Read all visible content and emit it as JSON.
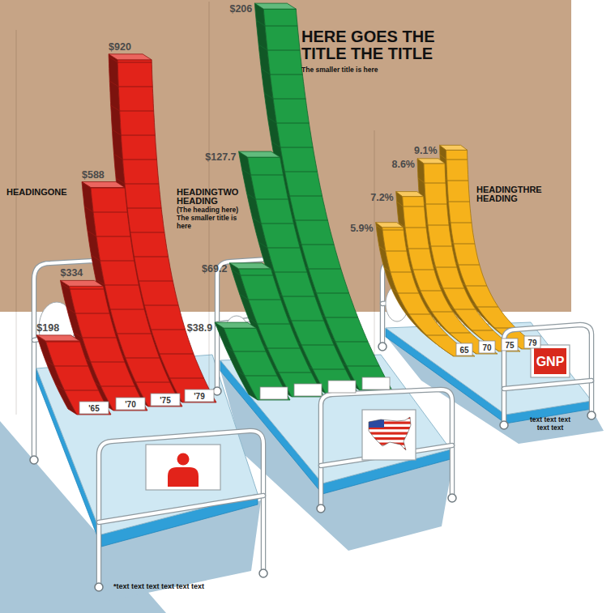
{
  "header": {
    "title": "HERE GOES THE TITLE THE TITLE",
    "subtitle": "The smaller title is here"
  },
  "chart_data": [
    {
      "type": "bar",
      "title": "HEADINGONE",
      "categories": [
        "'65",
        "'70",
        "'75",
        "'79"
      ],
      "values": [
        198,
        334,
        588,
        920
      ],
      "value_labels": [
        "$198",
        "$334",
        "$588",
        "$920"
      ],
      "data_labels": true,
      "color": "#e2231a",
      "ylim": [
        0,
        1000
      ],
      "tick_labels": false,
      "annotations": [
        "*text text text text text text"
      ]
    },
    {
      "type": "bar",
      "title": "HEADINGTWO HEADING",
      "subtitle": "(The heading here) The smaller title is here",
      "categories": [
        null,
        null,
        null,
        null
      ],
      "values": [
        38.9,
        69.2,
        127.7,
        206
      ],
      "value_labels": [
        "$38.9",
        "$69.2",
        "$127.7",
        "$206"
      ],
      "data_labels": true,
      "color": "#1f9e45",
      "ylim": [
        0,
        210
      ],
      "tick_labels": false
    },
    {
      "type": "bar",
      "title": "HEADINGTHRE HEADING",
      "categories": [
        "65",
        "70",
        "75",
        "79"
      ],
      "values": [
        5.9,
        7.2,
        8.6,
        9.1
      ],
      "value_labels": [
        "5.9%",
        "7.2%",
        "8.6%",
        "9.1%"
      ],
      "data_labels": true,
      "color": "#f6b21b",
      "ylim": [
        0,
        10
      ],
      "tick_labels": false,
      "annotations": [
        "GNP",
        "text text text text text"
      ]
    }
  ]
}
